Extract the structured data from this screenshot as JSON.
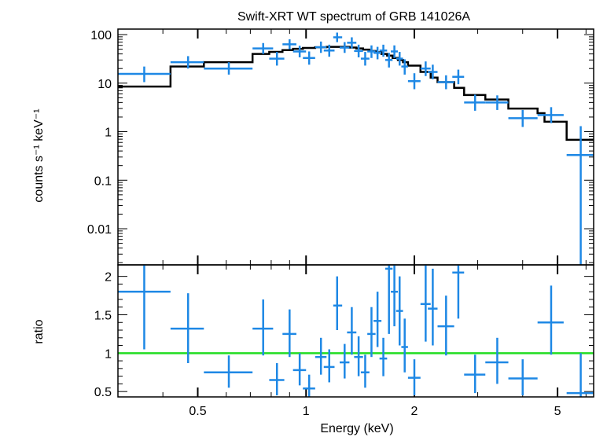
{
  "colors": {
    "data": "#1e88e5",
    "model": "#000000",
    "unity": "#22dd22",
    "frame": "#000000"
  },
  "chart_data": [
    {
      "type": "scatter",
      "title": "Swift-XRT WT spectrum of GRB 141026A",
      "xlabel": "",
      "ylabel": "counts s⁻¹ keV⁻¹",
      "xscale": "log",
      "yscale": "log",
      "xlim": [
        0.3,
        6.3
      ],
      "ylim": [
        0.0018,
        130
      ],
      "ytick_labels": [
        "0.01",
        "0.1",
        "1",
        "10",
        "100"
      ],
      "yticks": [
        0.01,
        0.1,
        1,
        10,
        100
      ],
      "points": [
        {
          "x": 0.355,
          "xlo": 0.3,
          "xhi": 0.42,
          "y": 15.5,
          "ylo": 10.5,
          "yhi": 22
        },
        {
          "x": 0.47,
          "xlo": 0.42,
          "xhi": 0.52,
          "y": 27,
          "ylo": 20,
          "yhi": 36
        },
        {
          "x": 0.61,
          "xlo": 0.52,
          "xhi": 0.71,
          "y": 20,
          "ylo": 15,
          "yhi": 27
        },
        {
          "x": 0.76,
          "xlo": 0.71,
          "xhi": 0.81,
          "y": 52,
          "ylo": 40,
          "yhi": 67
        },
        {
          "x": 0.83,
          "xlo": 0.79,
          "xhi": 0.87,
          "y": 32,
          "ylo": 23,
          "yhi": 44
        },
        {
          "x": 0.9,
          "xlo": 0.86,
          "xhi": 0.94,
          "y": 63,
          "ylo": 50,
          "yhi": 80
        },
        {
          "x": 0.96,
          "xlo": 0.92,
          "xhi": 1.0,
          "y": 45,
          "ylo": 34,
          "yhi": 59
        },
        {
          "x": 1.02,
          "xlo": 0.98,
          "xhi": 1.06,
          "y": 33,
          "ylo": 24,
          "yhi": 45
        },
        {
          "x": 1.1,
          "xlo": 1.06,
          "xhi": 1.14,
          "y": 55,
          "ylo": 42,
          "yhi": 72
        },
        {
          "x": 1.16,
          "xlo": 1.12,
          "xhi": 1.2,
          "y": 47,
          "ylo": 35,
          "yhi": 62
        },
        {
          "x": 1.22,
          "xlo": 1.19,
          "xhi": 1.26,
          "y": 88,
          "ylo": 70,
          "yhi": 110
        },
        {
          "x": 1.28,
          "xlo": 1.24,
          "xhi": 1.32,
          "y": 54,
          "ylo": 42,
          "yhi": 70
        },
        {
          "x": 1.34,
          "xlo": 1.3,
          "xhi": 1.38,
          "y": 68,
          "ylo": 52,
          "yhi": 88
        },
        {
          "x": 1.4,
          "xlo": 1.36,
          "xhi": 1.44,
          "y": 46,
          "ylo": 34,
          "yhi": 62
        },
        {
          "x": 1.46,
          "xlo": 1.42,
          "xhi": 1.5,
          "y": 32,
          "ylo": 23,
          "yhi": 44
        },
        {
          "x": 1.52,
          "xlo": 1.48,
          "xhi": 1.56,
          "y": 45,
          "ylo": 33,
          "yhi": 60
        },
        {
          "x": 1.58,
          "xlo": 1.54,
          "xhi": 1.62,
          "y": 42,
          "ylo": 31,
          "yhi": 56
        },
        {
          "x": 1.64,
          "xlo": 1.6,
          "xhi": 1.68,
          "y": 47,
          "ylo": 35,
          "yhi": 62
        },
        {
          "x": 1.7,
          "xlo": 1.66,
          "xhi": 1.74,
          "y": 30,
          "ylo": 21,
          "yhi": 42
        },
        {
          "x": 1.76,
          "xlo": 1.72,
          "xhi": 1.8,
          "y": 45,
          "ylo": 33,
          "yhi": 60
        },
        {
          "x": 1.82,
          "xlo": 1.78,
          "xhi": 1.86,
          "y": 32,
          "ylo": 23,
          "yhi": 44
        },
        {
          "x": 1.88,
          "xlo": 1.84,
          "xhi": 1.92,
          "y": 22,
          "ylo": 15,
          "yhi": 31
        },
        {
          "x": 2.0,
          "xlo": 1.92,
          "xhi": 2.08,
          "y": 11,
          "ylo": 7.5,
          "yhi": 16
        },
        {
          "x": 2.15,
          "xlo": 2.08,
          "xhi": 2.22,
          "y": 20,
          "ylo": 14,
          "yhi": 28
        },
        {
          "x": 2.25,
          "xlo": 2.18,
          "xhi": 2.32,
          "y": 17,
          "ylo": 12,
          "yhi": 24
        },
        {
          "x": 2.45,
          "xlo": 2.32,
          "xhi": 2.58,
          "y": 10.5,
          "ylo": 7.5,
          "yhi": 14.5
        },
        {
          "x": 2.65,
          "xlo": 2.55,
          "xhi": 2.75,
          "y": 13.5,
          "ylo": 9.5,
          "yhi": 19
        },
        {
          "x": 2.95,
          "xlo": 2.75,
          "xhi": 3.15,
          "y": 4.0,
          "ylo": 2.7,
          "yhi": 5.8
        },
        {
          "x": 3.4,
          "xlo": 3.15,
          "xhi": 3.65,
          "y": 4.0,
          "ylo": 2.8,
          "yhi": 5.6
        },
        {
          "x": 4.0,
          "xlo": 3.65,
          "xhi": 4.4,
          "y": 1.9,
          "ylo": 1.25,
          "yhi": 2.8
        },
        {
          "x": 4.8,
          "xlo": 4.4,
          "xhi": 5.2,
          "y": 2.2,
          "ylo": 1.5,
          "yhi": 3.2
        },
        {
          "x": 5.8,
          "xlo": 5.3,
          "xhi": 6.3,
          "y": 0.33,
          "ylo": 0.0018,
          "yhi": 1.3
        }
      ],
      "model_steps": [
        [
          0.3,
          8.5
        ],
        [
          0.42,
          22
        ],
        [
          0.52,
          27
        ],
        [
          0.71,
          40
        ],
        [
          0.79,
          44
        ],
        [
          0.86,
          48
        ],
        [
          0.92,
          51
        ],
        [
          0.98,
          53
        ],
        [
          1.06,
          55
        ],
        [
          1.14,
          56
        ],
        [
          1.26,
          56
        ],
        [
          1.32,
          54
        ],
        [
          1.38,
          52
        ],
        [
          1.44,
          49
        ],
        [
          1.5,
          46
        ],
        [
          1.56,
          43
        ],
        [
          1.62,
          40
        ],
        [
          1.68,
          37
        ],
        [
          1.74,
          33
        ],
        [
          1.8,
          30
        ],
        [
          1.86,
          27
        ],
        [
          1.92,
          23
        ],
        [
          2.08,
          17
        ],
        [
          2.22,
          13
        ],
        [
          2.32,
          10.5
        ],
        [
          2.58,
          8
        ],
        [
          2.75,
          5.7
        ],
        [
          3.15,
          4.6
        ],
        [
          3.65,
          3.0
        ],
        [
          4.4,
          2.4
        ],
        [
          4.6,
          1.6
        ],
        [
          5.3,
          0.68
        ],
        [
          6.3,
          0.68
        ]
      ]
    },
    {
      "type": "scatter",
      "title": "",
      "xlabel": "Energy (keV)",
      "ylabel": "ratio",
      "xscale": "log",
      "xlim": [
        0.3,
        6.3
      ],
      "ylim": [
        0.43,
        2.15
      ],
      "yticks": [
        0.5,
        1,
        1.5,
        2
      ],
      "ytick_labels": [
        "0.5",
        "1",
        "1.5",
        "2"
      ],
      "xticks": [
        0.5,
        1,
        2,
        5
      ],
      "xtick_labels": [
        "0.5",
        "1",
        "2",
        "5"
      ],
      "reference_line": 1,
      "points": [
        {
          "x": 0.355,
          "xlo": 0.3,
          "xhi": 0.42,
          "y": 1.8,
          "ylo": 1.05,
          "yhi": 2.15
        },
        {
          "x": 0.47,
          "xlo": 0.42,
          "xhi": 0.52,
          "y": 1.32,
          "ylo": 0.87,
          "yhi": 1.78
        },
        {
          "x": 0.61,
          "xlo": 0.52,
          "xhi": 0.71,
          "y": 0.75,
          "ylo": 0.55,
          "yhi": 0.97
        },
        {
          "x": 0.76,
          "xlo": 0.71,
          "xhi": 0.81,
          "y": 1.32,
          "ylo": 0.97,
          "yhi": 1.7
        },
        {
          "x": 0.83,
          "xlo": 0.79,
          "xhi": 0.87,
          "y": 0.65,
          "ylo": 0.45,
          "yhi": 0.87
        },
        {
          "x": 0.9,
          "xlo": 0.86,
          "xhi": 0.94,
          "y": 1.25,
          "ylo": 0.95,
          "yhi": 1.57
        },
        {
          "x": 0.96,
          "xlo": 0.92,
          "xhi": 1.0,
          "y": 0.78,
          "ylo": 0.58,
          "yhi": 1.0
        },
        {
          "x": 1.02,
          "xlo": 0.98,
          "xhi": 1.06,
          "y": 0.54,
          "ylo": 0.43,
          "yhi": 0.72
        },
        {
          "x": 1.1,
          "xlo": 1.06,
          "xhi": 1.14,
          "y": 0.95,
          "ylo": 0.72,
          "yhi": 1.2
        },
        {
          "x": 1.16,
          "xlo": 1.12,
          "xhi": 1.2,
          "y": 0.82,
          "ylo": 0.62,
          "yhi": 1.05
        },
        {
          "x": 1.22,
          "xlo": 1.19,
          "xhi": 1.26,
          "y": 1.62,
          "ylo": 1.3,
          "yhi": 2.0
        },
        {
          "x": 1.28,
          "xlo": 1.24,
          "xhi": 1.32,
          "y": 0.88,
          "ylo": 0.67,
          "yhi": 1.12
        },
        {
          "x": 1.34,
          "xlo": 1.3,
          "xhi": 1.38,
          "y": 1.27,
          "ylo": 0.98,
          "yhi": 1.6
        },
        {
          "x": 1.4,
          "xlo": 1.36,
          "xhi": 1.44,
          "y": 0.95,
          "ylo": 0.7,
          "yhi": 1.22
        },
        {
          "x": 1.46,
          "xlo": 1.42,
          "xhi": 1.5,
          "y": 0.75,
          "ylo": 0.55,
          "yhi": 0.98
        },
        {
          "x": 1.52,
          "xlo": 1.48,
          "xhi": 1.56,
          "y": 1.25,
          "ylo": 0.95,
          "yhi": 1.6
        },
        {
          "x": 1.58,
          "xlo": 1.54,
          "xhi": 1.62,
          "y": 1.42,
          "ylo": 1.08,
          "yhi": 1.8
        },
        {
          "x": 1.64,
          "xlo": 1.6,
          "xhi": 1.68,
          "y": 0.93,
          "ylo": 0.7,
          "yhi": 1.2
        },
        {
          "x": 1.7,
          "xlo": 1.66,
          "xhi": 1.74,
          "y": 2.1,
          "ylo": 1.25,
          "yhi": 2.15
        },
        {
          "x": 1.76,
          "xlo": 1.72,
          "xhi": 1.8,
          "y": 1.8,
          "ylo": 1.35,
          "yhi": 2.15
        },
        {
          "x": 1.82,
          "xlo": 1.78,
          "xhi": 1.86,
          "y": 1.55,
          "ylo": 1.1,
          "yhi": 2.0
        },
        {
          "x": 1.88,
          "xlo": 1.84,
          "xhi": 1.92,
          "y": 1.08,
          "ylo": 0.75,
          "yhi": 1.45
        },
        {
          "x": 2.0,
          "xlo": 1.92,
          "xhi": 2.08,
          "y": 0.68,
          "ylo": 0.45,
          "yhi": 0.92
        },
        {
          "x": 2.15,
          "xlo": 2.08,
          "xhi": 2.22,
          "y": 1.64,
          "ylo": 1.15,
          "yhi": 2.15
        },
        {
          "x": 2.25,
          "xlo": 2.18,
          "xhi": 2.32,
          "y": 1.58,
          "ylo": 1.1,
          "yhi": 2.1
        },
        {
          "x": 2.45,
          "xlo": 2.32,
          "xhi": 2.58,
          "y": 1.35,
          "ylo": 0.97,
          "yhi": 1.75
        },
        {
          "x": 2.65,
          "xlo": 2.55,
          "xhi": 2.75,
          "y": 2.05,
          "ylo": 1.45,
          "yhi": 2.15
        },
        {
          "x": 2.95,
          "xlo": 2.75,
          "xhi": 3.15,
          "y": 0.72,
          "ylo": 0.48,
          "yhi": 0.98
        },
        {
          "x": 3.4,
          "xlo": 3.15,
          "xhi": 3.65,
          "y": 0.88,
          "ylo": 0.6,
          "yhi": 1.2
        },
        {
          "x": 4.0,
          "xlo": 3.65,
          "xhi": 4.4,
          "y": 0.67,
          "ylo": 0.45,
          "yhi": 0.92
        },
        {
          "x": 4.8,
          "xlo": 4.4,
          "xhi": 5.2,
          "y": 1.4,
          "ylo": 0.98,
          "yhi": 1.88
        },
        {
          "x": 5.8,
          "xlo": 5.3,
          "xhi": 6.3,
          "y": 0.48,
          "ylo": 0.43,
          "yhi": 1.0
        }
      ]
    }
  ]
}
